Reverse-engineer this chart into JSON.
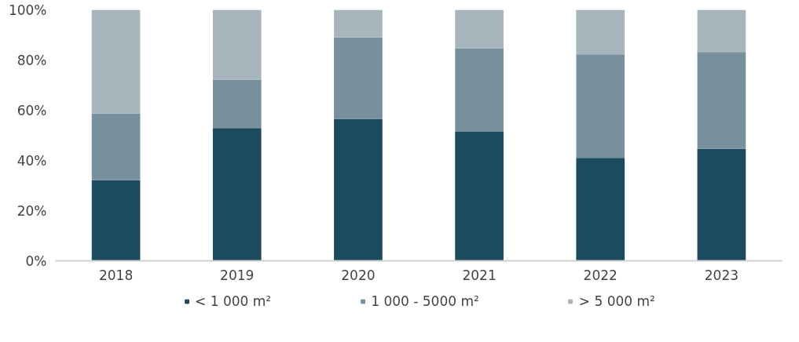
{
  "chart_data": {
    "type": "bar",
    "stacked": true,
    "categories": [
      "2018",
      "2019",
      "2020",
      "2021",
      "2022",
      "2023"
    ],
    "series": [
      {
        "name": "< 1 000 m²",
        "color": "#1c4a5e",
        "values": [
          32.1,
          52.9,
          56.6,
          51.4,
          41.0,
          44.6
        ]
      },
      {
        "name": "1 000 - 5000 m²",
        "color": "#78909c",
        "values": [
          26.6,
          19.3,
          32.4,
          33.3,
          41.3,
          38.6
        ]
      },
      {
        "name": "> 5 000 m²",
        "color": "#a7b5bd",
        "values": [
          41.3,
          27.8,
          11.0,
          15.3,
          17.7,
          16.8
        ]
      }
    ],
    "ylim": [
      0,
      100
    ],
    "yticks": [
      {
        "value": 0,
        "label": "0%"
      },
      {
        "value": 20,
        "label": "20%"
      },
      {
        "value": 40,
        "label": "40%"
      },
      {
        "value": 60,
        "label": "60%"
      },
      {
        "value": 80,
        "label": "80%"
      },
      {
        "value": 100,
        "label": "100%"
      }
    ],
    "grid": false,
    "legend": "bottom"
  }
}
